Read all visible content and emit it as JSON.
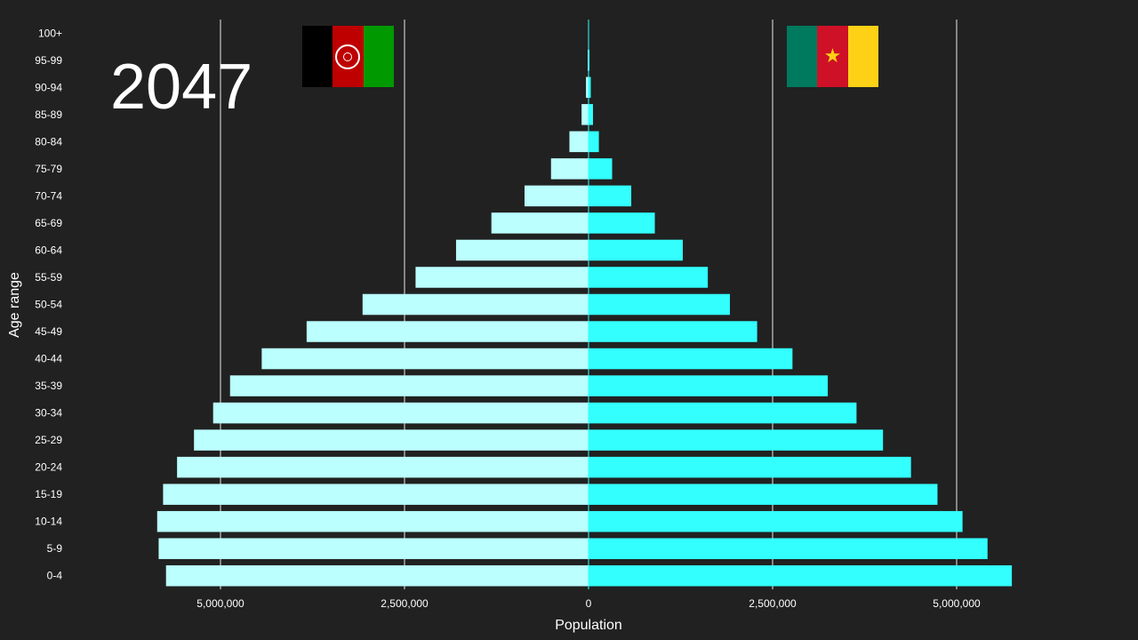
{
  "year": "2047",
  "flags": {
    "left": {
      "icon": "afghanistan-flag-icon",
      "stripes": [
        "#000000",
        "#BE0000",
        "#009900"
      ],
      "emblem_color": "#ffffff"
    },
    "right": {
      "icon": "cameroon-flag-icon",
      "stripes": [
        "#007A5E",
        "#CE1126",
        "#FCD116"
      ],
      "star_color": "#FCD116",
      "star": "★"
    }
  },
  "colors": {
    "background": "#212121",
    "left_bar": "#BBFFFF",
    "right_bar": "#33FFFF",
    "grid": "#ffffff",
    "text": "#ffffff"
  },
  "chart_data": {
    "type": "bar",
    "orientation": "horizontal",
    "title": "",
    "xlabel": "Population",
    "ylabel": "Age range",
    "categories": [
      "100+",
      "95-99",
      "90-94",
      "85-89",
      "80-84",
      "75-79",
      "70-74",
      "65-69",
      "60-64",
      "55-59",
      "50-54",
      "45-49",
      "40-44",
      "35-39",
      "30-34",
      "25-29",
      "20-24",
      "15-19",
      "10-14",
      "5-9",
      "0-4"
    ],
    "series": [
      {
        "side": "left",
        "values": [
          2000,
          12000,
          35000,
          95000,
          260000,
          510000,
          870000,
          1320000,
          1800000,
          2350000,
          3070000,
          3830000,
          4440000,
          4870000,
          5100000,
          5360000,
          5590000,
          5780000,
          5860000,
          5840000,
          5740000
        ]
      },
      {
        "side": "right",
        "values": [
          4000,
          13000,
          30000,
          60000,
          140000,
          320000,
          580000,
          900000,
          1280000,
          1620000,
          1920000,
          2290000,
          2770000,
          3250000,
          3640000,
          4000000,
          4380000,
          4740000,
          5080000,
          5420000,
          5750000
        ]
      }
    ],
    "xlim": [
      -5750000,
      5750000
    ],
    "xticks": [
      {
        "value": -5000000,
        "label": "5,000,000"
      },
      {
        "value": -2500000,
        "label": "2,500,000"
      },
      {
        "value": 0,
        "label": "0"
      },
      {
        "value": 2500000,
        "label": "2,500,000"
      },
      {
        "value": 5000000,
        "label": "5,000,000"
      }
    ],
    "grid": true,
    "legend": "none"
  }
}
